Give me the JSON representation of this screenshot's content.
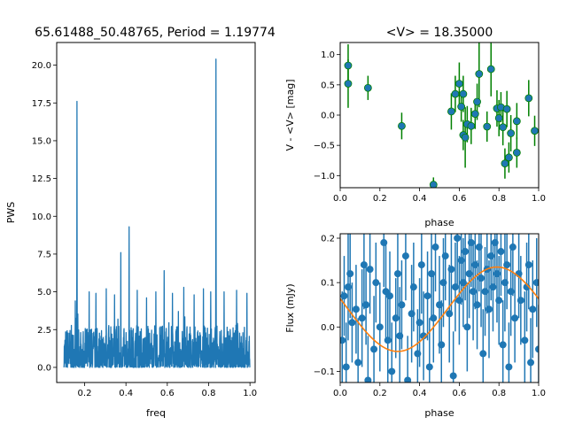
{
  "chart_data": [
    {
      "type": "line",
      "title": "65.61488_50.48765, Period = 1.19774",
      "xlabel": "freq",
      "ylabel": "PWS",
      "xlim": [
        0.065,
        1.025
      ],
      "ylim": [
        -1.0,
        21.5
      ],
      "xticks": [
        "0.2",
        "0.4",
        "0.6",
        "0.8",
        "1.0"
      ],
      "yticks": [
        "0.0",
        "2.5",
        "5.0",
        "7.5",
        "10.0",
        "12.5",
        "15.0",
        "17.5",
        "20.0"
      ],
      "grid": false,
      "line_color": "#1f77b4",
      "peaks": [
        {
          "x": 0.163,
          "y": 17.6
        },
        {
          "x": 0.835,
          "y": 20.4
        },
        {
          "x": 0.415,
          "y": 9.3
        },
        {
          "x": 0.375,
          "y": 7.6
        },
        {
          "x": 0.585,
          "y": 6.4
        },
        {
          "x": 0.155,
          "y": 4.4
        },
        {
          "x": 0.222,
          "y": 5.0
        },
        {
          "x": 0.255,
          "y": 4.9
        },
        {
          "x": 0.305,
          "y": 5.2
        },
        {
          "x": 0.345,
          "y": 4.8
        },
        {
          "x": 0.455,
          "y": 5.1
        },
        {
          "x": 0.5,
          "y": 4.6
        },
        {
          "x": 0.545,
          "y": 5.0
        },
        {
          "x": 0.625,
          "y": 4.9
        },
        {
          "x": 0.68,
          "y": 5.3
        },
        {
          "x": 0.73,
          "y": 4.8
        },
        {
          "x": 0.775,
          "y": 5.2
        },
        {
          "x": 0.81,
          "y": 5.0
        },
        {
          "x": 0.875,
          "y": 5.0
        },
        {
          "x": 0.935,
          "y": 5.1
        },
        {
          "x": 0.985,
          "y": 4.9
        }
      ]
    },
    {
      "type": "scatter",
      "title": "<V> = 18.35000",
      "xlabel": "phase",
      "ylabel": "V - <V> [mag]",
      "xlim": [
        0.0,
        1.0
      ],
      "ylim": [
        1.2,
        -1.2
      ],
      "y_inverted": true,
      "xticks": [
        "0.0",
        "0.2",
        "0.4",
        "0.6",
        "0.8",
        "1.0"
      ],
      "yticks": [
        "1.0",
        "0.5",
        "0.0",
        "−0.5",
        "−1.0"
      ],
      "marker_color": "#1f77b4",
      "errorbar_color": "#008000",
      "points": [
        {
          "x": 0.04,
          "y": 0.82,
          "err": 0.35
        },
        {
          "x": 0.04,
          "y": 0.52,
          "err": 0.4
        },
        {
          "x": 0.14,
          "y": 0.45,
          "err": 0.2
        },
        {
          "x": 0.31,
          "y": -0.18,
          "err": 0.22
        },
        {
          "x": 0.47,
          "y": -1.15,
          "err": 0.12
        },
        {
          "x": 0.56,
          "y": 0.06,
          "err": 0.3
        },
        {
          "x": 0.58,
          "y": 0.35,
          "err": 0.3
        },
        {
          "x": 0.6,
          "y": 0.52,
          "err": 0.35
        },
        {
          "x": 0.61,
          "y": 0.14,
          "err": 0.25
        },
        {
          "x": 0.62,
          "y": -0.33,
          "err": 0.25
        },
        {
          "x": 0.62,
          "y": 0.35,
          "err": 0.3
        },
        {
          "x": 0.63,
          "y": -0.37,
          "err": 0.5
        },
        {
          "x": 0.64,
          "y": -0.15,
          "err": 0.3
        },
        {
          "x": 0.66,
          "y": -0.18,
          "err": 0.3
        },
        {
          "x": 0.68,
          "y": 0.02,
          "err": 0.25
        },
        {
          "x": 0.69,
          "y": 0.22,
          "err": 0.3
        },
        {
          "x": 0.7,
          "y": 0.68,
          "err": 0.55
        },
        {
          "x": 0.74,
          "y": -0.19,
          "err": 0.25
        },
        {
          "x": 0.76,
          "y": 0.76,
          "err": 0.45
        },
        {
          "x": 0.79,
          "y": 0.11,
          "err": 0.3
        },
        {
          "x": 0.8,
          "y": -0.05,
          "err": 0.3
        },
        {
          "x": 0.81,
          "y": 0.13,
          "err": 0.25
        },
        {
          "x": 0.82,
          "y": -0.2,
          "err": 0.3
        },
        {
          "x": 0.83,
          "y": -0.8,
          "err": 0.25
        },
        {
          "x": 0.84,
          "y": 0.1,
          "err": 0.3
        },
        {
          "x": 0.85,
          "y": -0.7,
          "err": 0.25
        },
        {
          "x": 0.86,
          "y": -0.3,
          "err": 0.3
        },
        {
          "x": 0.89,
          "y": -0.1,
          "err": 0.3
        },
        {
          "x": 0.89,
          "y": -0.62,
          "err": 0.25
        },
        {
          "x": 0.95,
          "y": 0.28,
          "err": 0.3
        },
        {
          "x": 0.98,
          "y": -0.26,
          "err": 0.25
        }
      ]
    },
    {
      "type": "scatter",
      "title": "",
      "xlabel": "phase",
      "ylabel": "Flux (mJy)",
      "xlim": [
        0.0,
        1.0
      ],
      "ylim": [
        -0.125,
        0.21
      ],
      "xticks": [
        "0.0",
        "0.2",
        "0.4",
        "0.6",
        "0.8",
        "1.0"
      ],
      "yticks": [
        "−0.1",
        "0.0",
        "0.1",
        "0.2"
      ],
      "marker_color": "#1f77b4",
      "errorbar_color": "#1f77b4",
      "model_color": "#ff7f0e",
      "model": {
        "mean": 0.04,
        "amplitude": 0.095,
        "peak_phase": 0.79
      },
      "points": [
        {
          "x": 0.01,
          "y": -0.03,
          "err": 0.11
        },
        {
          "x": 0.02,
          "y": 0.07,
          "err": 0.09
        },
        {
          "x": 0.03,
          "y": -0.09,
          "err": 0.1
        },
        {
          "x": 0.04,
          "y": 0.09,
          "err": 0.12
        },
        {
          "x": 0.05,
          "y": 0.12,
          "err": 0.1
        },
        {
          "x": 0.06,
          "y": 0.01,
          "err": 0.09
        },
        {
          "x": 0.08,
          "y": 0.04,
          "err": 0.1
        },
        {
          "x": 0.09,
          "y": -0.08,
          "err": 0.1
        },
        {
          "x": 0.11,
          "y": 0.02,
          "err": 0.11
        },
        {
          "x": 0.12,
          "y": 0.14,
          "err": 0.1
        },
        {
          "x": 0.13,
          "y": 0.05,
          "err": 0.09
        },
        {
          "x": 0.14,
          "y": -0.12,
          "err": 0.1
        },
        {
          "x": 0.15,
          "y": 0.13,
          "err": 0.1
        },
        {
          "x": 0.17,
          "y": -0.05,
          "err": 0.12
        },
        {
          "x": 0.18,
          "y": 0.1,
          "err": 0.09
        },
        {
          "x": 0.2,
          "y": 0.0,
          "err": 0.1
        },
        {
          "x": 0.22,
          "y": 0.19,
          "err": 0.1
        },
        {
          "x": 0.23,
          "y": 0.08,
          "err": 0.11
        },
        {
          "x": 0.24,
          "y": -0.03,
          "err": 0.1
        },
        {
          "x": 0.25,
          "y": 0.07,
          "err": 0.1
        },
        {
          "x": 0.26,
          "y": -0.1,
          "err": 0.11
        },
        {
          "x": 0.28,
          "y": 0.02,
          "err": 0.09
        },
        {
          "x": 0.29,
          "y": 0.12,
          "err": 0.1
        },
        {
          "x": 0.3,
          "y": -0.02,
          "err": 0.11
        },
        {
          "x": 0.31,
          "y": 0.05,
          "err": 0.1
        },
        {
          "x": 0.33,
          "y": 0.16,
          "err": 0.1
        },
        {
          "x": 0.34,
          "y": -0.12,
          "err": 0.1
        },
        {
          "x": 0.36,
          "y": 0.03,
          "err": 0.11
        },
        {
          "x": 0.37,
          "y": 0.09,
          "err": 0.1
        },
        {
          "x": 0.39,
          "y": -0.06,
          "err": 0.1
        },
        {
          "x": 0.4,
          "y": 0.01,
          "err": 0.1
        },
        {
          "x": 0.41,
          "y": 0.14,
          "err": 0.11
        },
        {
          "x": 0.42,
          "y": -0.02,
          "err": 0.1
        },
        {
          "x": 0.44,
          "y": 0.07,
          "err": 0.1
        },
        {
          "x": 0.45,
          "y": -0.09,
          "err": 0.11
        },
        {
          "x": 0.46,
          "y": 0.12,
          "err": 0.1
        },
        {
          "x": 0.47,
          "y": 0.02,
          "err": 0.1
        },
        {
          "x": 0.48,
          "y": 0.18,
          "err": 0.1
        },
        {
          "x": 0.5,
          "y": 0.05,
          "err": 0.11
        },
        {
          "x": 0.51,
          "y": -0.04,
          "err": 0.1
        },
        {
          "x": 0.52,
          "y": 0.1,
          "err": 0.1
        },
        {
          "x": 0.53,
          "y": 0.16,
          "err": 0.1
        },
        {
          "x": 0.55,
          "y": 0.03,
          "err": 0.11
        },
        {
          "x": 0.56,
          "y": 0.13,
          "err": 0.1
        },
        {
          "x": 0.57,
          "y": -0.11,
          "err": 0.1
        },
        {
          "x": 0.58,
          "y": 0.09,
          "err": 0.1
        },
        {
          "x": 0.59,
          "y": 0.2,
          "err": 0.11
        },
        {
          "x": 0.6,
          "y": 0.06,
          "err": 0.1
        },
        {
          "x": 0.61,
          "y": 0.15,
          "err": 0.1
        },
        {
          "x": 0.62,
          "y": 0.1,
          "err": 0.1
        },
        {
          "x": 0.63,
          "y": 0.17,
          "err": 0.11
        },
        {
          "x": 0.64,
          "y": 0.0,
          "err": 0.1
        },
        {
          "x": 0.65,
          "y": 0.12,
          "err": 0.1
        },
        {
          "x": 0.66,
          "y": 0.19,
          "err": 0.1
        },
        {
          "x": 0.67,
          "y": 0.08,
          "err": 0.11
        },
        {
          "x": 0.68,
          "y": 0.14,
          "err": 0.1
        },
        {
          "x": 0.69,
          "y": 0.05,
          "err": 0.1
        },
        {
          "x": 0.7,
          "y": 0.18,
          "err": 0.1
        },
        {
          "x": 0.71,
          "y": 0.11,
          "err": 0.11
        },
        {
          "x": 0.72,
          "y": -0.06,
          "err": 0.1
        },
        {
          "x": 0.73,
          "y": 0.08,
          "err": 0.1
        },
        {
          "x": 0.74,
          "y": 0.13,
          "err": 0.1
        },
        {
          "x": 0.75,
          "y": 0.04,
          "err": 0.11
        },
        {
          "x": 0.76,
          "y": 0.16,
          "err": 0.1
        },
        {
          "x": 0.77,
          "y": 0.09,
          "err": 0.1
        },
        {
          "x": 0.78,
          "y": 0.19,
          "err": 0.1
        },
        {
          "x": 0.79,
          "y": 0.12,
          "err": 0.11
        },
        {
          "x": 0.8,
          "y": 0.06,
          "err": 0.1
        },
        {
          "x": 0.81,
          "y": 0.17,
          "err": 0.1
        },
        {
          "x": 0.82,
          "y": -0.04,
          "err": 0.1
        },
        {
          "x": 0.83,
          "y": 0.1,
          "err": 0.11
        },
        {
          "x": 0.84,
          "y": 0.14,
          "err": 0.1
        },
        {
          "x": 0.85,
          "y": -0.09,
          "err": 0.1
        },
        {
          "x": 0.86,
          "y": 0.08,
          "err": 0.1
        },
        {
          "x": 0.87,
          "y": 0.18,
          "err": 0.11
        },
        {
          "x": 0.88,
          "y": 0.02,
          "err": 0.1
        },
        {
          "x": 0.9,
          "y": 0.12,
          "err": 0.1
        },
        {
          "x": 0.91,
          "y": 0.06,
          "err": 0.1
        },
        {
          "x": 0.93,
          "y": -0.03,
          "err": 0.11
        },
        {
          "x": 0.94,
          "y": 0.09,
          "err": 0.1
        },
        {
          "x": 0.95,
          "y": 0.14,
          "err": 0.1
        },
        {
          "x": 0.96,
          "y": -0.08,
          "err": 0.1
        },
        {
          "x": 0.97,
          "y": 0.04,
          "err": 0.11
        },
        {
          "x": 0.99,
          "y": 0.1,
          "err": 0.1
        },
        {
          "x": 1.0,
          "y": -0.05,
          "err": 0.1
        }
      ]
    }
  ]
}
